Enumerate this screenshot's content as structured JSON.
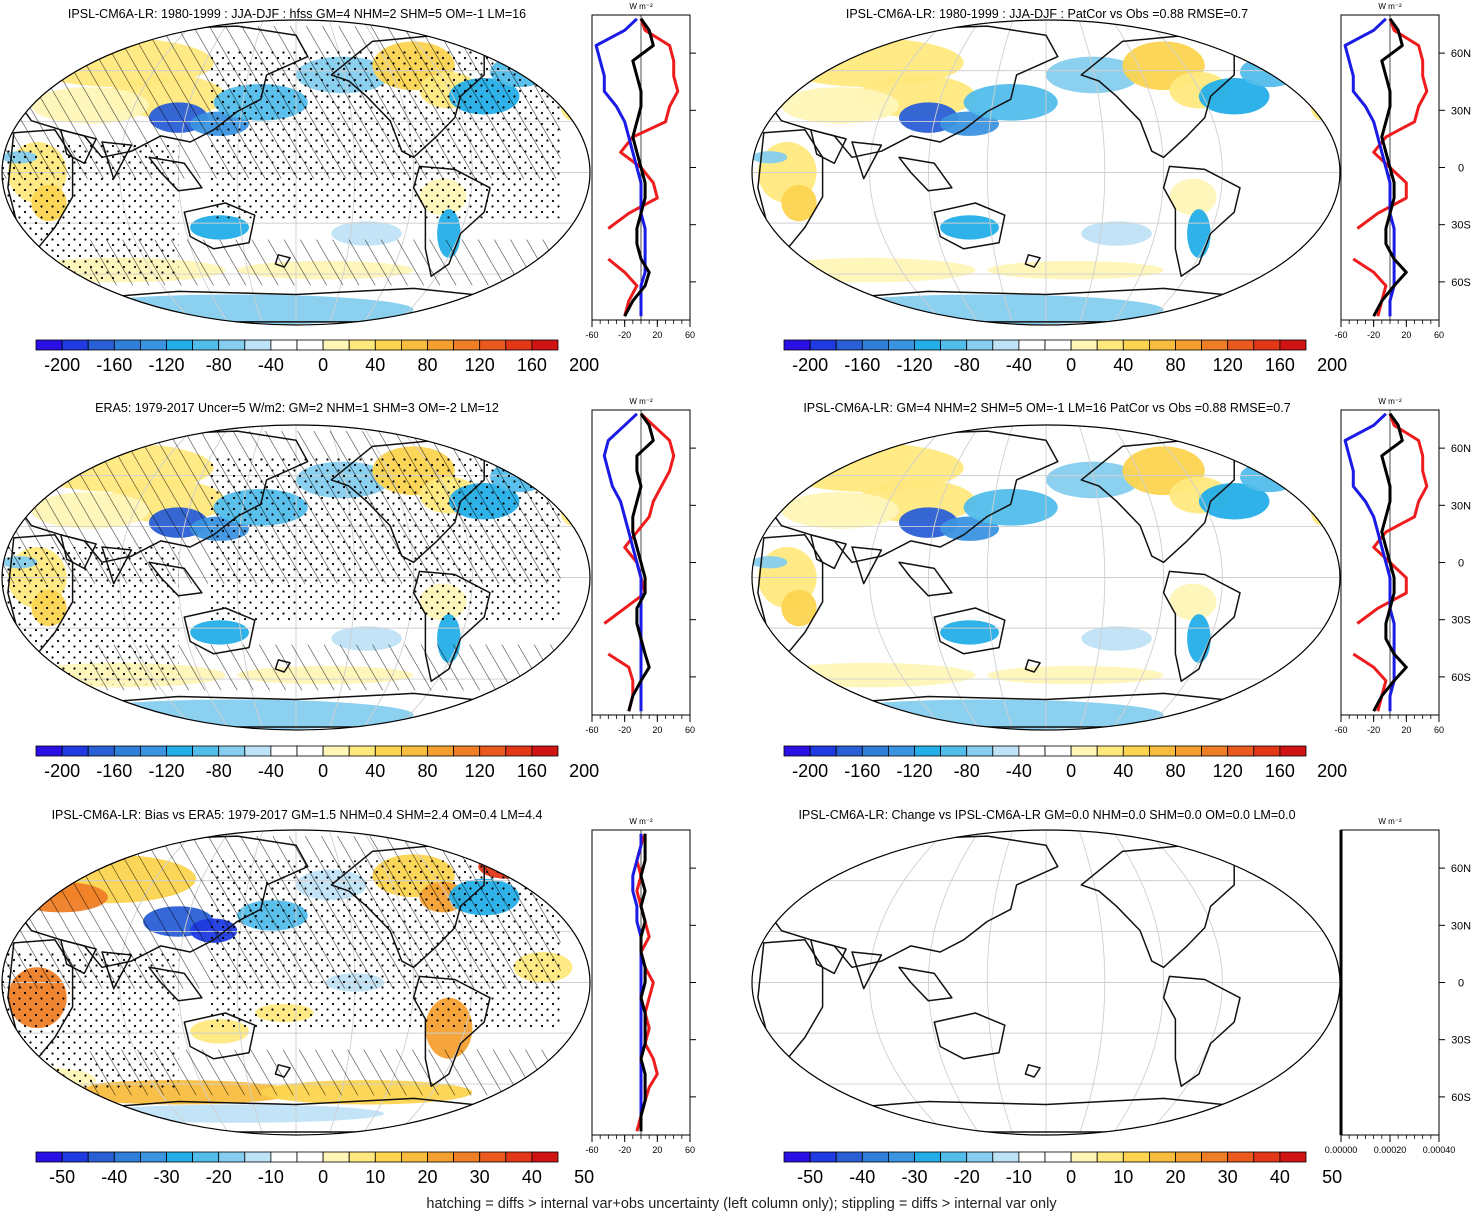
{
  "palette": [
    "#2a10e6",
    "#1e3ae0",
    "#2a5fd6",
    "#2f7ed8",
    "#3a94e0",
    "#24aee8",
    "#52bdea",
    "#86cdef",
    "#bfe3f6",
    "#ffffff",
    "#ffffff",
    "#fff6b8",
    "#ffe97e",
    "#fcd44f",
    "#f8bd3f",
    "#f4a030",
    "#ef7e26",
    "#ea5a1f",
    "#e23818",
    "#d01414"
  ],
  "land_color": "#111111",
  "grid_color": "#cfcfcf",
  "chart_data": [
    {
      "type": "heatmap",
      "title": "IPSL-CM6A-LR: 1980-1999 : JJA-DJF : hfss GM=4 NHM=2 SHM=5 OM=-1 LM=16",
      "colorbar_ticks": [
        "-200",
        "-160",
        "-120",
        "-80",
        "-40",
        "0",
        "40",
        "80",
        "120",
        "160",
        "200"
      ],
      "stats": {
        "GM": 4,
        "NHM": 2,
        "SHM": 5,
        "OM": -1,
        "LM": 16
      },
      "hatching": true,
      "stippling": true,
      "zonal_mean": {
        "unit": "W m⁻²",
        "xlim": [
          -60,
          60
        ],
        "ylim": [
          -80,
          80
        ],
        "xticks": [
          "-60",
          "-20",
          "20",
          "60"
        ],
        "yticks": [
          "60N",
          "30N",
          "0",
          "30S",
          "60S"
        ],
        "show_yticks": false,
        "lat": [
          -78,
          -70,
          -62,
          -55,
          -48,
          -40,
          -32,
          -24,
          -16,
          -8,
          0,
          8,
          16,
          24,
          32,
          40,
          48,
          56,
          64,
          72,
          78
        ],
        "red": [
          -20,
          -15,
          -5,
          -20,
          -40,
          null,
          -40,
          -15,
          20,
          15,
          0,
          -25,
          -10,
          30,
          35,
          45,
          40,
          40,
          35,
          5,
          0
        ],
        "blue": [
          0,
          0,
          0,
          5,
          5,
          5,
          5,
          0,
          0,
          0,
          -5,
          -10,
          -15,
          -20,
          -30,
          -45,
          -45,
          -50,
          -55,
          -20,
          -5
        ],
        "black": [
          -20,
          -10,
          5,
          10,
          0,
          -5,
          -5,
          0,
          5,
          5,
          0,
          -5,
          -10,
          -5,
          0,
          0,
          -5,
          -10,
          15,
          10,
          0
        ]
      }
    },
    {
      "type": "heatmap",
      "title": "IPSL-CM6A-LR: 1980-1999 : JJA-DJF : PatCor vs Obs =0.88 RMSE=0.7",
      "colorbar_ticks": [
        "-200",
        "-160",
        "-120",
        "-80",
        "-40",
        "0",
        "40",
        "80",
        "120",
        "160",
        "200"
      ],
      "stats": {
        "PatCor": 0.88,
        "RMSE": 0.7
      },
      "hatching": false,
      "stippling": false,
      "zonal_mean": {
        "unit": "W m⁻²",
        "xlim": [
          -60,
          60
        ],
        "ylim": [
          -80,
          80
        ],
        "xticks": [
          "-60",
          "-20",
          "20",
          "60"
        ],
        "yticks": [
          "60N",
          "30N",
          "0",
          "30S",
          "60S"
        ],
        "show_yticks": true,
        "lat": [
          -78,
          -70,
          -62,
          -55,
          -48,
          -40,
          -32,
          -24,
          -16,
          -8,
          0,
          8,
          16,
          24,
          32,
          40,
          48,
          56,
          64,
          72,
          78
        ],
        "red": [
          -15,
          -10,
          -5,
          -20,
          -45,
          null,
          -40,
          -15,
          20,
          20,
          0,
          -20,
          -5,
          30,
          35,
          45,
          40,
          40,
          35,
          5,
          0
        ],
        "blue": [
          0,
          0,
          5,
          5,
          5,
          5,
          5,
          0,
          0,
          0,
          -5,
          -10,
          -15,
          -20,
          -30,
          -45,
          -45,
          -50,
          -55,
          -20,
          -5
        ],
        "black": [
          -20,
          -10,
          5,
          20,
          5,
          -5,
          -5,
          0,
          5,
          5,
          0,
          -5,
          -10,
          -5,
          0,
          0,
          -5,
          -10,
          15,
          10,
          0
        ]
      }
    },
    {
      "type": "heatmap",
      "title": "ERA5: 1979-2017 Uncer=5 W/m2: GM=2 NHM=1 SHM=3 OM=-2 LM=12",
      "colorbar_ticks": [
        "-200",
        "-160",
        "-120",
        "-80",
        "-40",
        "0",
        "40",
        "80",
        "120",
        "160",
        "200"
      ],
      "stats": {
        "GM": 2,
        "NHM": 1,
        "SHM": 3,
        "OM": -2,
        "LM": 12,
        "Uncer": 5
      },
      "hatching": true,
      "stippling": true,
      "zonal_mean": {
        "unit": "W m⁻²",
        "xlim": [
          -60,
          60
        ],
        "ylim": [
          -80,
          80
        ],
        "xticks": [
          "-60",
          "-20",
          "20",
          "60"
        ],
        "yticks": [
          "60N",
          "30N",
          "0",
          "30S",
          "60S"
        ],
        "show_yticks": false,
        "lat": [
          -78,
          -70,
          -62,
          -55,
          -48,
          -40,
          -32,
          -24,
          -16,
          -8,
          0,
          8,
          16,
          24,
          32,
          40,
          48,
          56,
          64,
          72,
          78
        ],
        "red": [
          -15,
          -10,
          -10,
          -15,
          -40,
          null,
          -45,
          -20,
          5,
          0,
          -5,
          -20,
          -5,
          10,
          15,
          25,
          35,
          40,
          35,
          15,
          0
        ],
        "blue": [
          0,
          0,
          0,
          0,
          0,
          0,
          0,
          0,
          0,
          0,
          -5,
          -10,
          -15,
          -20,
          -25,
          -35,
          -40,
          -45,
          -40,
          -20,
          -5
        ],
        "black": [
          -15,
          -10,
          0,
          10,
          5,
          0,
          -5,
          -5,
          5,
          5,
          0,
          -5,
          -10,
          -10,
          -5,
          0,
          -5,
          -5,
          15,
          10,
          0
        ]
      }
    },
    {
      "type": "heatmap",
      "title": "IPSL-CM6A-LR: GM=4 NHM=2 SHM=5 OM=-1 LM=16 PatCor vs Obs =0.88 RMSE=0.7",
      "colorbar_ticks": [
        "-200",
        "-160",
        "-120",
        "-80",
        "-40",
        "0",
        "40",
        "80",
        "120",
        "160",
        "200"
      ],
      "stats": {
        "GM": 4,
        "NHM": 2,
        "SHM": 5,
        "OM": -1,
        "LM": 16,
        "PatCor": 0.88,
        "RMSE": 0.7
      },
      "hatching": false,
      "stippling": false,
      "zonal_mean": {
        "unit": "W m⁻²",
        "xlim": [
          -60,
          60
        ],
        "ylim": [
          -80,
          80
        ],
        "xticks": [
          "-60",
          "-20",
          "20",
          "60"
        ],
        "yticks": [
          "60N",
          "30N",
          "0",
          "30S",
          "60S"
        ],
        "show_yticks": true,
        "lat": [
          -78,
          -70,
          -62,
          -55,
          -48,
          -40,
          -32,
          -24,
          -16,
          -8,
          0,
          8,
          16,
          24,
          32,
          40,
          48,
          56,
          64,
          72,
          78
        ],
        "red": [
          -15,
          -10,
          -5,
          -20,
          -45,
          null,
          -40,
          -15,
          20,
          20,
          0,
          -20,
          -5,
          30,
          35,
          45,
          40,
          40,
          35,
          5,
          0
        ],
        "blue": [
          0,
          0,
          5,
          5,
          5,
          5,
          5,
          0,
          0,
          0,
          -5,
          -10,
          -15,
          -20,
          -30,
          -45,
          -45,
          -50,
          -55,
          -20,
          -5
        ],
        "black": [
          -20,
          -10,
          5,
          20,
          5,
          -5,
          -5,
          0,
          5,
          5,
          0,
          -5,
          -10,
          -5,
          0,
          0,
          -5,
          -10,
          15,
          10,
          0
        ]
      }
    },
    {
      "type": "heatmap",
      "title": "IPSL-CM6A-LR: Bias vs ERA5: 1979-2017 GM=1.5 NHM=0.4 SHM=2.4 OM=0.4 LM=4.4",
      "colorbar_ticks": [
        "-50",
        "-40",
        "-30",
        "-20",
        "-10",
        "0",
        "10",
        "20",
        "30",
        "40",
        "50"
      ],
      "stats": {
        "GM": 1.5,
        "NHM": 0.4,
        "SHM": 2.4,
        "OM": 0.4,
        "LM": 4.4
      },
      "hatching": true,
      "stippling": true,
      "zonal_mean": {
        "unit": "W m⁻²",
        "xlim": [
          -60,
          60
        ],
        "ylim": [
          -80,
          80
        ],
        "xticks": [
          "-60",
          "-20",
          "20",
          "60"
        ],
        "yticks": [
          "60N",
          "30N",
          "0",
          "30S",
          "60S"
        ],
        "show_yticks": false,
        "lat": [
          -78,
          -70,
          -62,
          -55,
          -48,
          -40,
          -32,
          -24,
          -16,
          -8,
          0,
          8,
          16,
          24,
          32,
          40,
          48,
          56,
          64,
          72,
          78
        ],
        "red": [
          -5,
          0,
          5,
          10,
          20,
          15,
          5,
          10,
          5,
          10,
          15,
          5,
          0,
          10,
          5,
          0,
          -5,
          0,
          -5,
          0,
          5
        ],
        "blue": [
          0,
          0,
          0,
          0,
          0,
          0,
          0,
          0,
          0,
          0,
          0,
          0,
          0,
          0,
          -5,
          -5,
          -10,
          -10,
          -5,
          0,
          0
        ],
        "black": [
          0,
          0,
          5,
          5,
          5,
          0,
          5,
          5,
          5,
          0,
          5,
          5,
          0,
          0,
          5,
          0,
          5,
          0,
          5,
          5,
          5
        ]
      }
    },
    {
      "type": "heatmap",
      "title": "IPSL-CM6A-LR: Change vs IPSL-CM6A-LR GM=0.0 NHM=0.0 SHM=0.0 OM=0.0 LM=0.0",
      "colorbar_ticks": [
        "-50",
        "-40",
        "-30",
        "-20",
        "-10",
        "0",
        "10",
        "20",
        "30",
        "40",
        "50"
      ],
      "stats": {
        "GM": 0.0,
        "NHM": 0.0,
        "SHM": 0.0,
        "OM": 0.0,
        "LM": 0.0
      },
      "hatching": false,
      "stippling": false,
      "empty_field": true,
      "zonal_mean": {
        "unit": "W m⁻²",
        "xlim": [
          0,
          0.0005
        ],
        "ylim": [
          -80,
          80
        ],
        "xticks": [
          "0.00000",
          "0.00020",
          "0.00040"
        ],
        "yticks": [
          "60N",
          "30N",
          "0",
          "30S",
          "60S"
        ],
        "show_yticks": true,
        "lat": [
          -80,
          80
        ],
        "red": [],
        "blue": [],
        "black": [
          0,
          0
        ]
      }
    }
  ],
  "footer": "hatching = diffs > internal var+obs uncertainty (left column only); stippling = diffs > internal var only"
}
